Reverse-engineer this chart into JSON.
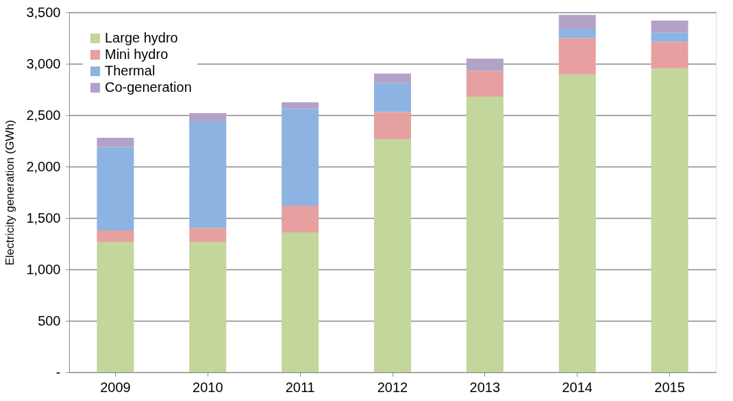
{
  "chart_data": {
    "type": "bar",
    "stacked": true,
    "ylabel": "Electricity generation (GWh)",
    "categories": [
      "2009",
      "2010",
      "2011",
      "2012",
      "2013",
      "2014",
      "2015"
    ],
    "series": [
      {
        "name": "Large hydro",
        "color": "#c3d69b",
        "values": [
          1265,
          1265,
          1360,
          2265,
          2680,
          2895,
          2955
        ]
      },
      {
        "name": "Mini hydro",
        "color": "#e6a0a0",
        "values": [
          115,
          140,
          260,
          265,
          250,
          355,
          260
        ]
      },
      {
        "name": "Thermal",
        "color": "#8db3e2",
        "values": [
          810,
          1035,
          945,
          285,
          0,
          90,
          90
        ]
      },
      {
        "name": "Co-generation",
        "color": "#b3a2c7",
        "values": [
          90,
          80,
          60,
          90,
          120,
          135,
          115
        ]
      }
    ],
    "ylim": [
      0,
      3500
    ],
    "yticks": [
      {
        "value": 0,
        "label": "-"
      },
      {
        "value": 500,
        "label": "500"
      },
      {
        "value": 1000,
        "label": "1,000"
      },
      {
        "value": 1500,
        "label": "1,500"
      },
      {
        "value": 2000,
        "label": "2,000"
      },
      {
        "value": 2500,
        "label": "2,500"
      },
      {
        "value": 3000,
        "label": "3,000"
      },
      {
        "value": 3500,
        "label": "3,500"
      }
    ],
    "grid": "y",
    "legend": "top left"
  }
}
